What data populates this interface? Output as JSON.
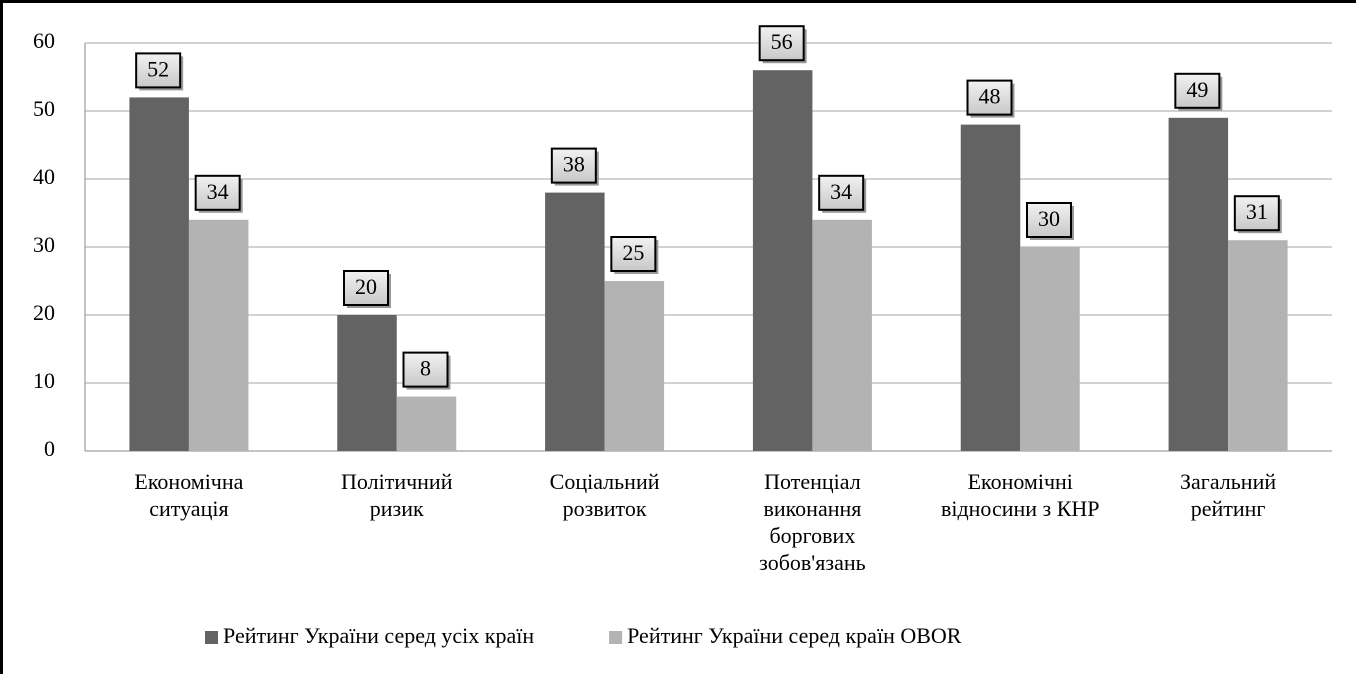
{
  "chart_data": {
    "type": "bar",
    "categories": [
      "Економічна ситуація",
      "Політичний ризик",
      "Соціальний розвиток",
      "Потенціал виконання боргових зобов'язань",
      "Економічні відносини з КНР",
      "Загальний рейтинг"
    ],
    "series": [
      {
        "name": "Рейтинг України серед усіх країн",
        "color": "#636363",
        "values": [
          52,
          20,
          38,
          56,
          48,
          49
        ]
      },
      {
        "name": "Рейтинг України серед країн OBOR",
        "color": "#b3b3b3",
        "values": [
          34,
          8,
          25,
          34,
          30,
          31
        ]
      }
    ],
    "ylim": [
      0,
      60
    ],
    "yticks": [
      0,
      10,
      20,
      30,
      40,
      50,
      60
    ],
    "grid": true,
    "legend": "bottom"
  }
}
